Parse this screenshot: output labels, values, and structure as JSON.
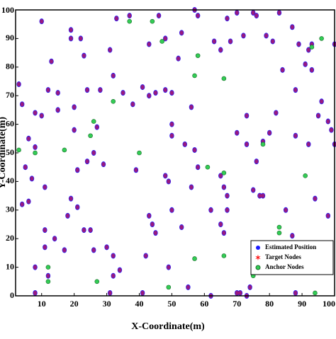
{
  "chart_data": {
    "type": "scatter",
    "x_label": "X-Coordinate(m)",
    "y_label": "Y-Coordinate(m)",
    "xlim": [
      2,
      100
    ],
    "ylim": [
      0,
      100
    ],
    "xticks": [
      10,
      20,
      30,
      40,
      50,
      60,
      70,
      80,
      90,
      100
    ],
    "yticks": [
      0,
      10,
      20,
      30,
      40,
      50,
      60,
      70,
      80,
      90,
      100
    ],
    "legend": "lower right",
    "series": [
      {
        "name": "Estimated Position",
        "color": "#1a1aff",
        "x": [
          3,
          4,
          5,
          4,
          6,
          6,
          7,
          8,
          8,
          8,
          8,
          10,
          10,
          11,
          11,
          11,
          12,
          12,
          13,
          14,
          15,
          15,
          17,
          18,
          19,
          19,
          19,
          20,
          20,
          21,
          21,
          22,
          23,
          23,
          24,
          24,
          25,
          26,
          27,
          26,
          28,
          29,
          30,
          31,
          31,
          32,
          32,
          32,
          33,
          34,
          35,
          37,
          38,
          39,
          41,
          41,
          42,
          43,
          43,
          43,
          44,
          45,
          45,
          46,
          48,
          48,
          48,
          49,
          49,
          50,
          50,
          50,
          50,
          53,
          52,
          53,
          54,
          55,
          56,
          56,
          57,
          57,
          58,
          58,
          62,
          62,
          63,
          65,
          65,
          66,
          65,
          66,
          67,
          67,
          67,
          68,
          70,
          70,
          70,
          71,
          72,
          73,
          73,
          73,
          74,
          75,
          75,
          75,
          76,
          76,
          77,
          78,
          78,
          79,
          80,
          81,
          82,
          83,
          84,
          85,
          87,
          87,
          88,
          88,
          88,
          89,
          91,
          92,
          92,
          93,
          93,
          94,
          95,
          96,
          98,
          98,
          99,
          100,
          100
        ],
        "y": [
          74,
          67,
          45,
          32,
          55,
          33,
          41,
          10,
          1,
          52,
          64,
          96,
          63,
          38,
          23,
          17,
          7,
          72,
          82,
          20,
          71,
          65,
          16,
          28,
          93,
          90,
          34,
          58,
          66,
          31,
          44,
          90,
          84,
          23,
          72,
          47,
          23,
          16,
          59,
          50,
          72,
          46,
          17,
          86,
          1,
          7,
          14,
          77,
          97,
          9,
          71,
          98,
          67,
          44,
          73,
          1,
          14,
          88,
          70,
          28,
          25,
          71,
          22,
          98,
          72,
          42,
          90,
          40,
          10,
          71,
          30,
          60,
          56,
          92,
          83,
          24,
          53,
          3,
          66,
          38,
          100,
          51,
          45,
          98,
          30,
          0,
          89,
          42,
          86,
          38,
          25,
          22,
          35,
          97,
          30,
          89,
          57,
          99,
          1,
          1,
          91,
          53,
          63,
          0,
          3,
          99,
          37,
          17,
          47,
          98,
          35,
          54,
          35,
          91,
          57,
          89,
          64,
          99,
          79,
          30,
          21,
          94,
          72,
          56,
          1,
          88,
          81,
          53,
          86,
          88,
          79,
          34,
          63,
          68,
          28,
          61,
          58,
          53,
          88
        ]
      },
      {
        "name": "Target Nodes",
        "color": "#ff1a1a",
        "x": [
          3,
          4,
          5,
          4,
          6,
          6,
          7,
          8,
          8,
          8,
          8,
          10,
          10,
          11,
          11,
          11,
          12,
          12,
          13,
          14,
          15,
          15,
          17,
          18,
          19,
          19,
          19,
          20,
          20,
          21,
          21,
          22,
          23,
          23,
          24,
          24,
          25,
          26,
          27,
          26,
          28,
          29,
          30,
          31,
          31,
          32,
          32,
          32,
          33,
          34,
          35,
          37,
          38,
          39,
          41,
          41,
          42,
          43,
          43,
          43,
          44,
          45,
          45,
          46,
          48,
          48,
          48,
          49,
          49,
          50,
          50,
          50,
          50,
          53,
          52,
          53,
          54,
          55,
          56,
          56,
          57,
          57,
          58,
          58,
          62,
          62,
          63,
          65,
          65,
          66,
          65,
          66,
          67,
          67,
          67,
          68,
          70,
          70,
          70,
          71,
          72,
          73,
          73,
          73,
          74,
          75,
          75,
          75,
          76,
          76,
          77,
          78,
          78,
          79,
          80,
          81,
          82,
          83,
          84,
          85,
          87,
          87,
          88,
          88,
          88,
          89,
          91,
          92,
          92,
          93,
          93,
          94,
          95,
          96,
          98,
          98,
          99,
          100,
          100
        ],
        "y": [
          74,
          67,
          45,
          32,
          55,
          33,
          41,
          10,
          1,
          52,
          64,
          96,
          63,
          38,
          23,
          17,
          7,
          72,
          82,
          20,
          71,
          65,
          16,
          28,
          93,
          90,
          34,
          58,
          66,
          31,
          44,
          90,
          84,
          23,
          72,
          47,
          23,
          16,
          59,
          50,
          72,
          46,
          17,
          86,
          1,
          7,
          14,
          77,
          97,
          9,
          71,
          98,
          67,
          44,
          73,
          1,
          14,
          88,
          70,
          28,
          25,
          71,
          22,
          98,
          72,
          42,
          90,
          40,
          10,
          71,
          30,
          60,
          56,
          92,
          83,
          24,
          53,
          3,
          66,
          38,
          100,
          51,
          45,
          98,
          30,
          0,
          89,
          42,
          86,
          38,
          25,
          22,
          35,
          97,
          30,
          89,
          57,
          99,
          1,
          1,
          91,
          53,
          63,
          0,
          3,
          99,
          37,
          17,
          47,
          98,
          35,
          54,
          35,
          91,
          57,
          89,
          64,
          99,
          79,
          30,
          21,
          94,
          72,
          56,
          1,
          88,
          81,
          53,
          86,
          88,
          79,
          34,
          63,
          68,
          28,
          61,
          58,
          53,
          88
        ]
      },
      {
        "name": "Anchor Nodes",
        "color": "#33cc55",
        "x": [
          37,
          44,
          47,
          58,
          57,
          66,
          32,
          26,
          25,
          17,
          8,
          3,
          40,
          61,
          66,
          78,
          93,
          96,
          91,
          83,
          83,
          66,
          57,
          49,
          27,
          12,
          12,
          75,
          94,
          91
        ],
        "y": [
          96,
          96,
          89,
          84,
          77,
          76,
          68,
          61,
          56,
          51,
          50,
          51,
          50,
          45,
          43,
          53,
          87,
          90,
          42,
          22,
          24,
          14,
          13,
          3,
          5,
          5,
          10,
          7,
          1,
          14
        ]
      }
    ]
  }
}
